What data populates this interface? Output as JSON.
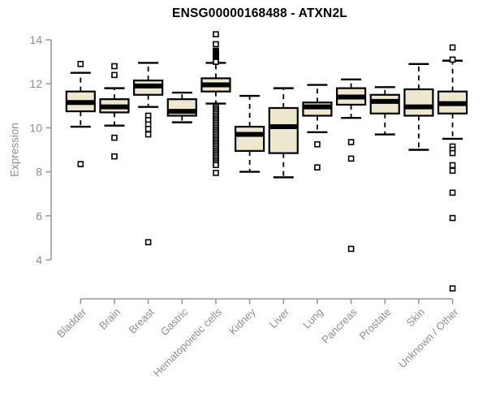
{
  "chart_data": {
    "type": "boxplot",
    "title": "ENSG00000168488 - ATXN2L",
    "xlabel": "",
    "ylabel": "Expression",
    "yticks": [
      4,
      6,
      8,
      10,
      12,
      14
    ],
    "ylim": [
      2.5,
      14.4
    ],
    "grid": false,
    "legend": false,
    "colors": {
      "box_fill": "#EDE8CD",
      "box_border": "#000000",
      "median": "#000000",
      "whisker": "#000000",
      "outlier_fill": "#ffffff",
      "axis_line": "#999999",
      "tick_label": "#8e8e8e",
      "title_color": "#000000",
      "background": "#ffffff"
    },
    "categories": [
      "Bladder",
      "Brain",
      "Breast",
      "Gastric",
      "Hematopoietic cells",
      "Kidney",
      "Liver",
      "Lung",
      "Pancreas",
      "Prostate",
      "Skin",
      "Unknown / Other"
    ],
    "boxes": [
      {
        "category": "Bladder",
        "low": 10.05,
        "q1": 10.75,
        "median": 11.15,
        "q3": 11.65,
        "high": 12.5,
        "outliers": [
          12.9,
          8.35
        ]
      },
      {
        "category": "Brain",
        "low": 10.1,
        "q1": 10.7,
        "median": 10.95,
        "q3": 11.3,
        "high": 11.8,
        "outliers": [
          12.8,
          12.4,
          9.55,
          8.7
        ]
      },
      {
        "category": "Breast",
        "low": 10.95,
        "q1": 11.5,
        "median": 11.9,
        "q3": 12.15,
        "high": 12.95,
        "outliers": [
          10.55,
          10.35,
          10.15,
          9.95,
          9.7,
          4.8
        ]
      },
      {
        "category": "Gastric",
        "low": 10.25,
        "q1": 10.55,
        "median": 10.75,
        "q3": 11.3,
        "high": 11.6,
        "outliers": []
      },
      {
        "category": "Hematopoietic cells",
        "low": 11.1,
        "q1": 11.65,
        "median": 11.95,
        "q3": 12.25,
        "high": 12.95,
        "outliers": [
          14.25,
          13.8,
          13.5,
          13.45,
          13.4,
          13.35,
          13.3,
          13.25,
          13.2,
          13.15,
          13.1,
          13.05,
          13.0,
          10.95,
          10.87,
          10.79,
          10.71,
          10.63,
          10.55,
          10.47,
          10.39,
          10.31,
          10.23,
          10.15,
          10.07,
          9.99,
          9.91,
          9.83,
          9.75,
          9.67,
          9.59,
          9.51,
          9.43,
          9.35,
          9.27,
          9.19,
          9.11,
          9.03,
          8.95,
          8.87,
          8.79,
          8.71,
          8.63,
          8.55,
          8.47,
          8.39,
          8.31,
          7.95
        ]
      },
      {
        "category": "Kidney",
        "low": 8.0,
        "q1": 8.95,
        "median": 9.7,
        "q3": 10.05,
        "high": 11.45,
        "outliers": []
      },
      {
        "category": "Liver",
        "low": 7.75,
        "q1": 8.85,
        "median": 10.05,
        "q3": 10.9,
        "high": 11.8,
        "outliers": []
      },
      {
        "category": "Lung",
        "low": 9.8,
        "q1": 10.55,
        "median": 10.95,
        "q3": 11.15,
        "high": 11.95,
        "outliers": [
          9.25,
          8.2
        ]
      },
      {
        "category": "Pancreas",
        "low": 10.45,
        "q1": 11.05,
        "median": 11.4,
        "q3": 11.8,
        "high": 12.2,
        "outliers": [
          9.35,
          8.6,
          4.5
        ]
      },
      {
        "category": "Prostate",
        "low": 9.7,
        "q1": 10.65,
        "median": 11.2,
        "q3": 11.5,
        "high": 11.85,
        "outliers": []
      },
      {
        "category": "Skin",
        "low": 9.0,
        "q1": 10.55,
        "median": 10.95,
        "q3": 11.75,
        "high": 12.9,
        "outliers": []
      },
      {
        "category": "Unknown / Other",
        "low": 9.5,
        "q1": 10.65,
        "median": 11.1,
        "q3": 11.65,
        "high": 13.05,
        "outliers": [
          13.65,
          13.1,
          9.15,
          9.0,
          8.85,
          8.3,
          8.05,
          7.05,
          5.9,
          2.7
        ]
      }
    ]
  }
}
